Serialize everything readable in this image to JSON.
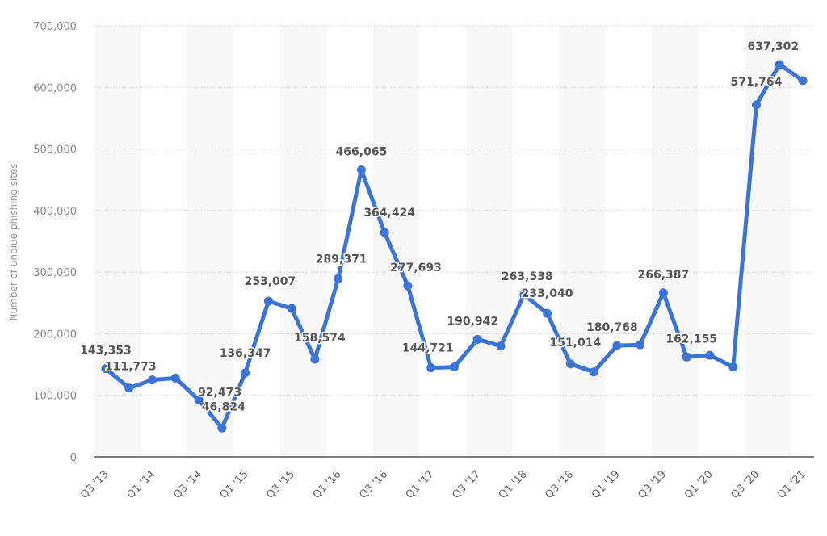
{
  "chart_data": {
    "type": "line",
    "title": "",
    "xlabel": "",
    "ylabel": "Number of unqiue phishing sites",
    "ylim": [
      0,
      700000
    ],
    "yticks": [
      0,
      100000,
      200000,
      300000,
      400000,
      500000,
      600000,
      700000
    ],
    "ytick_labels": [
      "0",
      "100,000",
      "200,000",
      "300,000",
      "400,000",
      "500,000",
      "600,000",
      "700,000"
    ],
    "grid": true,
    "legend": null,
    "categories": [
      "Q3 '13",
      "Q4 '13",
      "Q1 '14",
      "Q2 '14",
      "Q3 '14",
      "Q4 '14",
      "Q1 '15",
      "Q2 '15",
      "Q3 '15",
      "Q4 '15",
      "Q1 '16",
      "Q2 '16",
      "Q3 '16",
      "Q4 '16",
      "Q1 '17",
      "Q2 '17",
      "Q3 '17",
      "Q4 '17",
      "Q1 '18",
      "Q2 '18",
      "Q3 '18",
      "Q4 '18",
      "Q1 '19",
      "Q2 '19",
      "Q3 '19",
      "Q4 '19",
      "Q1 '20",
      "Q2 '20",
      "Q3 '20",
      "Q4 '20",
      "Q1 '21"
    ],
    "xtick_labels": [
      "Q3 '13",
      "Q1 '14",
      "Q3 '14",
      "Q1 '15",
      "Q3 '15",
      "Q1 '16",
      "Q3 '16",
      "Q1 '17",
      "Q3 '17",
      "Q1 '18",
      "Q3 '18",
      "Q1 '19",
      "Q3 '19",
      "Q1 '20",
      "Q3 '20",
      "Q1 '21"
    ],
    "series": [
      {
        "name": "Unique phishing sites",
        "color": "#3c74d6",
        "values": [
          143353,
          111773,
          125000,
          128000,
          92473,
          46824,
          136347,
          253007,
          241000,
          158574,
          289371,
          466065,
          364424,
          277693,
          144721,
          146000,
          190942,
          180000,
          263538,
          233040,
          151014,
          138000,
          180768,
          182000,
          266387,
          162155,
          165000,
          146000,
          571764,
          637302,
          611000
        ],
        "labeled": [
          true,
          true,
          false,
          false,
          true,
          true,
          true,
          true,
          false,
          true,
          true,
          true,
          true,
          true,
          true,
          false,
          true,
          false,
          true,
          true,
          true,
          false,
          true,
          false,
          true,
          true,
          false,
          false,
          true,
          true,
          false
        ]
      }
    ],
    "data_labels": [
      {
        "index": 0,
        "text": "143,353"
      },
      {
        "index": 1,
        "text": "111,773"
      },
      {
        "index": 4,
        "text": "92,473"
      },
      {
        "index": 5,
        "text": "46,824"
      },
      {
        "index": 6,
        "text": "136,347"
      },
      {
        "index": 7,
        "text": "253,007"
      },
      {
        "index": 9,
        "text": "158,574"
      },
      {
        "index": 10,
        "text": "289,371"
      },
      {
        "index": 11,
        "text": "466,065"
      },
      {
        "index": 12,
        "text": "364,424"
      },
      {
        "index": 13,
        "text": "277,693"
      },
      {
        "index": 14,
        "text": "144,721"
      },
      {
        "index": 16,
        "text": "190,942"
      },
      {
        "index": 18,
        "text": "263,538"
      },
      {
        "index": 19,
        "text": "233,040"
      },
      {
        "index": 20,
        "text": "151,014"
      },
      {
        "index": 22,
        "text": "180,768"
      },
      {
        "index": 24,
        "text": "266,387"
      },
      {
        "index": 25,
        "text": "162,155"
      },
      {
        "index": 28,
        "text": "571,764"
      },
      {
        "index": 29,
        "text": "637,302"
      }
    ]
  },
  "style": {
    "line_color": "#3c74d6",
    "band_color": "#f7f7f7",
    "grid_color": "#cfcfcf",
    "axis_color": "#555555"
  }
}
